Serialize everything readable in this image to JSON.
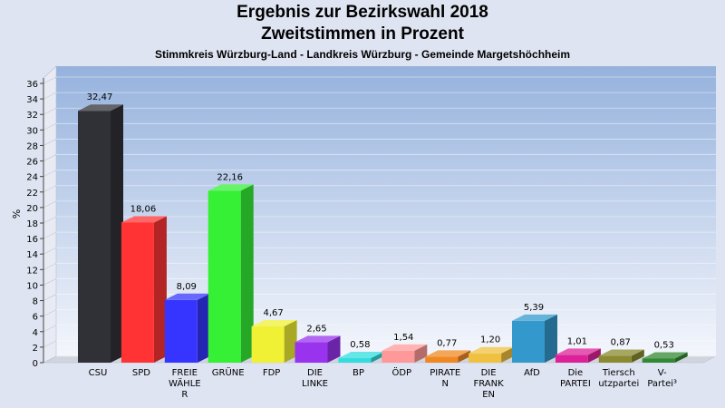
{
  "chart_data": {
    "type": "bar",
    "title": "Ergebnis zur Bezirkswahl 2018",
    "subtitle": "Zweitstimmen in Prozent",
    "subsubtitle": "Stimmkreis Würzburg-Land - Landkreis Würzburg - Gemeinde Margetshöchheim",
    "ylabel": "%",
    "ylim": [
      0,
      36
    ],
    "yticks": [
      0,
      2,
      4,
      6,
      8,
      10,
      12,
      14,
      16,
      18,
      20,
      22,
      24,
      26,
      28,
      30,
      32,
      34,
      36
    ],
    "grid": true,
    "categories": [
      [
        "CSU"
      ],
      [
        "SPD"
      ],
      [
        "FREIE",
        "WÄHLE",
        "R"
      ],
      [
        "GRÜNE"
      ],
      [
        "FDP"
      ],
      [
        "DIE",
        "LINKE"
      ],
      [
        "BP"
      ],
      [
        "ÖDP"
      ],
      [
        "PIRATE",
        "N"
      ],
      [
        "DIE",
        "FRANK",
        "EN"
      ],
      [
        "AfD"
      ],
      [
        "Die",
        "PARTEI"
      ],
      [
        "Tiersch",
        "utzpartei"
      ],
      [
        "V-",
        "Partei³"
      ]
    ],
    "values": [
      32.47,
      18.06,
      8.09,
      22.16,
      4.67,
      2.65,
      0.58,
      1.54,
      0.77,
      1.2,
      5.39,
      1.01,
      0.87,
      0.53
    ],
    "value_labels": [
      "32,47",
      "18,06",
      "8,09",
      "22,16",
      "4,67",
      "2,65",
      "0,58",
      "1,54",
      "0,77",
      "1,20",
      "5,39",
      "1,01",
      "0,87",
      "0,53"
    ],
    "colors": [
      "#303037",
      "#ff3333",
      "#3535ff",
      "#35f035",
      "#f0f035",
      "#9933ee",
      "#33dddd",
      "#ff9999",
      "#f08822",
      "#f0c040",
      "#3399cc",
      "#dd2299",
      "#8a8a30",
      "#338833"
    ]
  }
}
